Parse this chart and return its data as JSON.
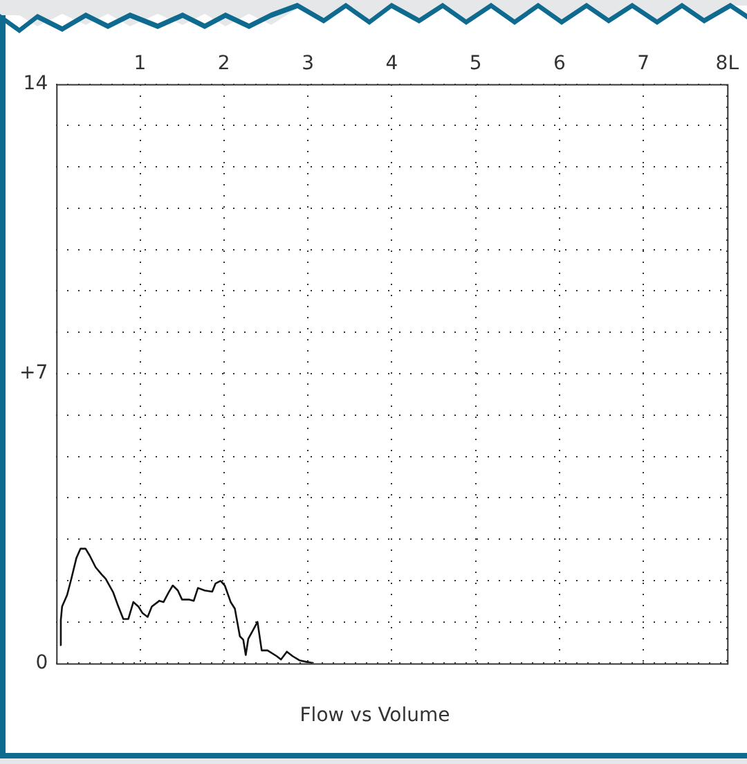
{
  "chart_data": {
    "type": "line",
    "title": "Flow vs Volume",
    "x": [
      0.045,
      0.055,
      0.07,
      0.13,
      0.18,
      0.24,
      0.29,
      0.35,
      0.4,
      0.47,
      0.54,
      0.59,
      0.68,
      0.73,
      0.8,
      0.86,
      0.92,
      0.98,
      1.03,
      1.09,
      1.14,
      1.23,
      1.28,
      1.34,
      1.39,
      1.45,
      1.5,
      1.58,
      1.64,
      1.69,
      1.77,
      1.86,
      1.9,
      1.96,
      2.01,
      2.08,
      2.13,
      2.19,
      2.23,
      2.26,
      2.29,
      2.35,
      2.4,
      2.45,
      2.52,
      2.63,
      2.68,
      2.75,
      2.82,
      2.9,
      2.99,
      3.07
    ],
    "series": [
      {
        "color": "#111111",
        "values": [
          0.44,
          1.04,
          1.37,
          1.65,
          2.04,
          2.54,
          2.77,
          2.77,
          2.6,
          2.32,
          2.15,
          2.04,
          1.71,
          1.43,
          1.07,
          1.07,
          1.48,
          1.37,
          1.21,
          1.12,
          1.37,
          1.51,
          1.48,
          1.71,
          1.88,
          1.76,
          1.54,
          1.54,
          1.51,
          1.82,
          1.76,
          1.73,
          1.93,
          1.99,
          1.88,
          1.48,
          1.32,
          0.65,
          0.57,
          0.2,
          0.59,
          0.81,
          1.0,
          0.31,
          0.31,
          0.17,
          0.09,
          0.28,
          0.17,
          0.07,
          0.03,
          0
        ]
      }
    ],
    "xlim": [
      0,
      8
    ],
    "xticks": [
      1,
      2,
      3,
      4,
      5,
      6,
      7,
      {
        "value": 8,
        "label": "8L"
      }
    ],
    "ylim": [
      0,
      14
    ],
    "yticks": [
      0,
      {
        "value": 1,
        "label": null
      },
      {
        "value": 2,
        "label": null
      },
      {
        "value": 3,
        "label": null
      },
      {
        "value": 4,
        "label": null
      },
      {
        "value": 5,
        "label": null
      },
      {
        "value": 6,
        "label": null
      },
      {
        "value": 7,
        "label": "+7"
      },
      {
        "value": 8,
        "label": null
      },
      {
        "value": 9,
        "label": null
      },
      {
        "value": 10,
        "label": null
      },
      {
        "value": 11,
        "label": null
      },
      {
        "value": 12,
        "label": null
      },
      {
        "value": 13,
        "label": null
      },
      14
    ],
    "grid": true,
    "legend": false,
    "marker": "none",
    "line_style": "solid"
  }
}
